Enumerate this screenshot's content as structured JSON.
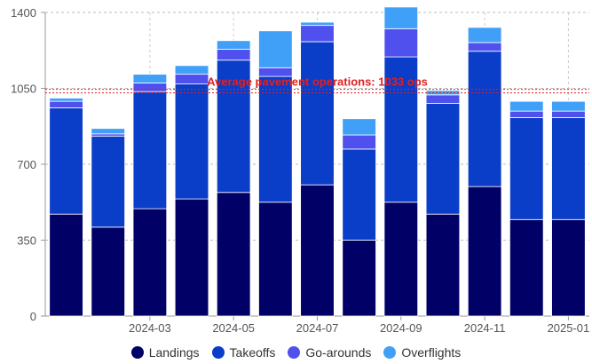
{
  "chart_data": {
    "type": "bar",
    "stacked": true,
    "categories": [
      "2024-01",
      "2024-02",
      "2024-03",
      "2024-04",
      "2024-05",
      "2024-06",
      "2024-07",
      "2024-08",
      "2024-09",
      "2024-10",
      "2024-11",
      "2024-12",
      "2025-01"
    ],
    "x_tick_labels": [
      "2024-03",
      "2024-05",
      "2024-07",
      "2024-09",
      "2024-11",
      "2025-01"
    ],
    "series": [
      {
        "name": "Landings",
        "color": "#000066",
        "values": [
          470,
          410,
          495,
          540,
          570,
          525,
          605,
          350,
          525,
          470,
          597,
          445,
          445
        ]
      },
      {
        "name": "Takeoffs",
        "color": "#0a3dc8",
        "values": [
          490,
          420,
          540,
          530,
          610,
          580,
          660,
          420,
          670,
          510,
          624,
          470,
          470
        ]
      },
      {
        "name": "Go-arounds",
        "color": "#5050ee",
        "values": [
          30,
          10,
          40,
          45,
          50,
          40,
          75,
          65,
          130,
          40,
          40,
          30,
          30
        ]
      },
      {
        "name": "Overflights",
        "color": "#40a0f8",
        "values": [
          15,
          25,
          40,
          40,
          40,
          170,
          15,
          75,
          100,
          20,
          70,
          45,
          45
        ]
      }
    ],
    "ylim": [
      0,
      1400
    ],
    "y_ticks": [
      0,
      350,
      700,
      1050,
      1400
    ],
    "reference_line": {
      "value": 1033,
      "label": "Average pavement operations: 1033 ops",
      "color": "#e02020"
    },
    "grid": "dashed horizontal and vertical",
    "legend_position": "bottom"
  }
}
